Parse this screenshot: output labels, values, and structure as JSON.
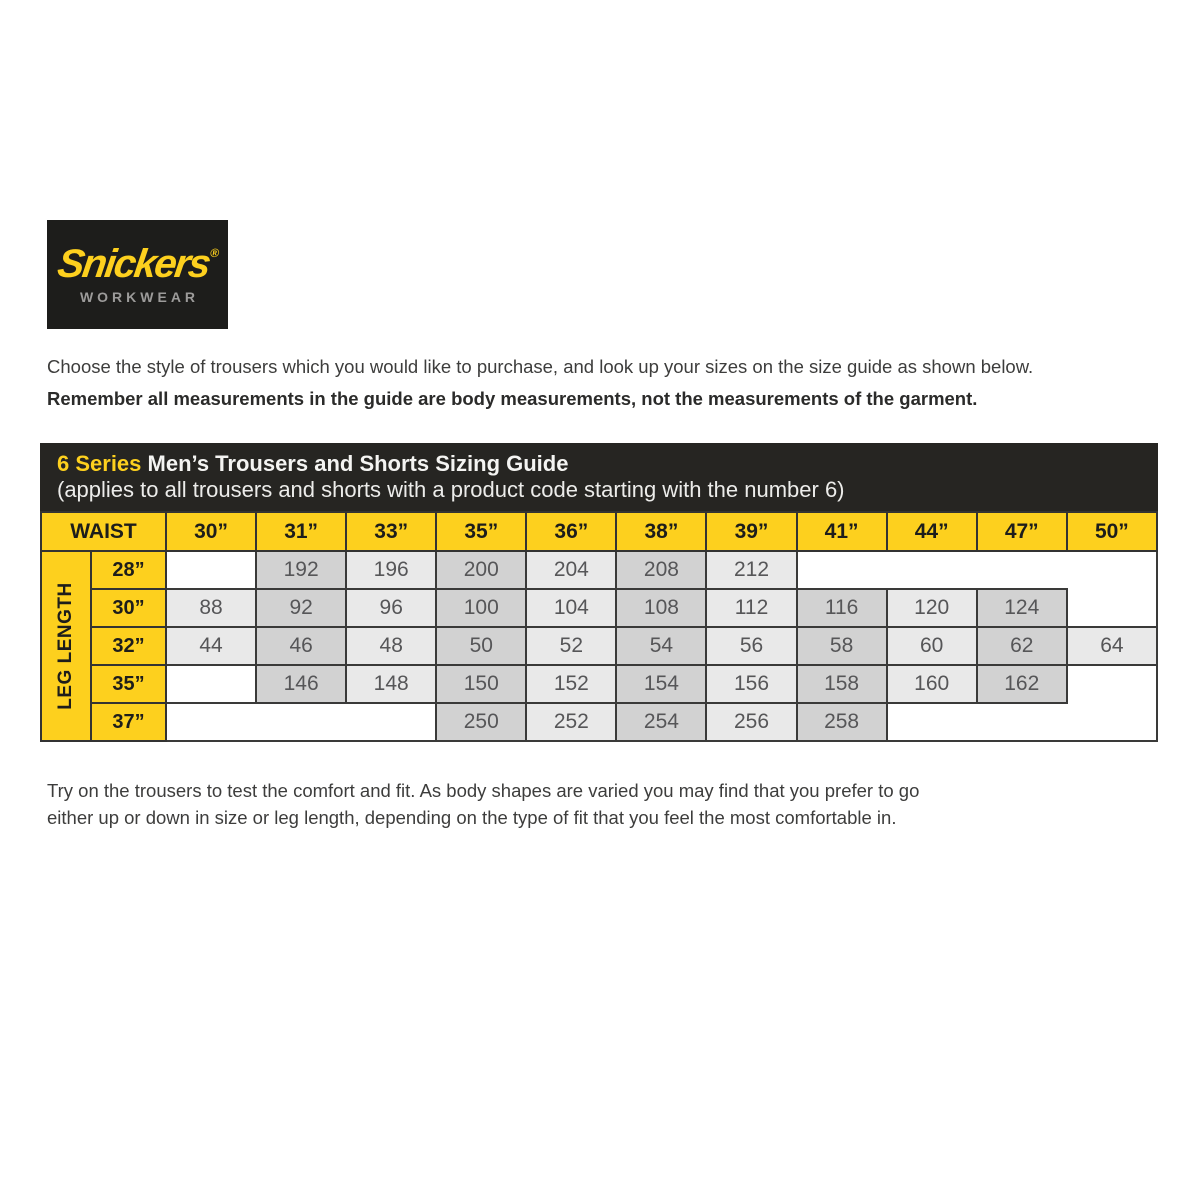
{
  "colors": {
    "brand_yellow": "#fdd01e",
    "logo_black": "#1d1d1b",
    "title_bar": "#262522",
    "cell_dark": "#d2d2d2",
    "cell_light": "#e9e9e9",
    "cell_number_text": "#565658",
    "border": "#333332",
    "body_text": "#3d3d3c",
    "logo_gray": "#9c9b9a"
  },
  "logo": {
    "brand": "Snickers",
    "registered": "®",
    "subtitle": "WORKWEAR"
  },
  "intro": {
    "line1": "Choose the style of trousers which you would like to purchase, and look up your sizes on the size guide as shown below.",
    "line2": "Remember all measurements in the guide are body measurements, not the measurements of the garment."
  },
  "sizing_table": {
    "series": "6 Series",
    "title": "Men’s Trousers and Shorts Sizing Guide",
    "subtitle": "(applies to all trousers and shorts with a product code starting with the number 6)",
    "corner_label": "WAIST",
    "axis_label": "LEG LENGTH",
    "waist_headers": [
      "30”",
      "31”",
      "33”",
      "35”",
      "36”",
      "38”",
      "39”",
      "41”",
      "44”",
      "47”",
      "50”"
    ],
    "rows": [
      {
        "leg": "28”",
        "values": [
          "",
          "192",
          "196",
          "200",
          "204",
          "208",
          "212"
        ]
      },
      {
        "leg": "30”",
        "values": [
          "88",
          "92",
          "96",
          "100",
          "104",
          "108",
          "112",
          "116",
          "120",
          "124"
        ]
      },
      {
        "leg": "32”",
        "values": [
          "44",
          "46",
          "48",
          "50",
          "52",
          "54",
          "56",
          "58",
          "60",
          "62",
          "64"
        ]
      },
      {
        "leg": "35”",
        "values": [
          "",
          "146",
          "148",
          "150",
          "152",
          "154",
          "156",
          "158",
          "160",
          "162"
        ]
      },
      {
        "leg": "37”",
        "values": [
          "250",
          "252",
          "254",
          "256",
          "258"
        ]
      }
    ]
  },
  "footer": {
    "line1": "Try on the trousers to test the comfort and fit. As body shapes are varied you may find that you prefer to go",
    "line2": "either up or down in size or leg length, depending on the type of fit that you feel the most comfortable in."
  }
}
